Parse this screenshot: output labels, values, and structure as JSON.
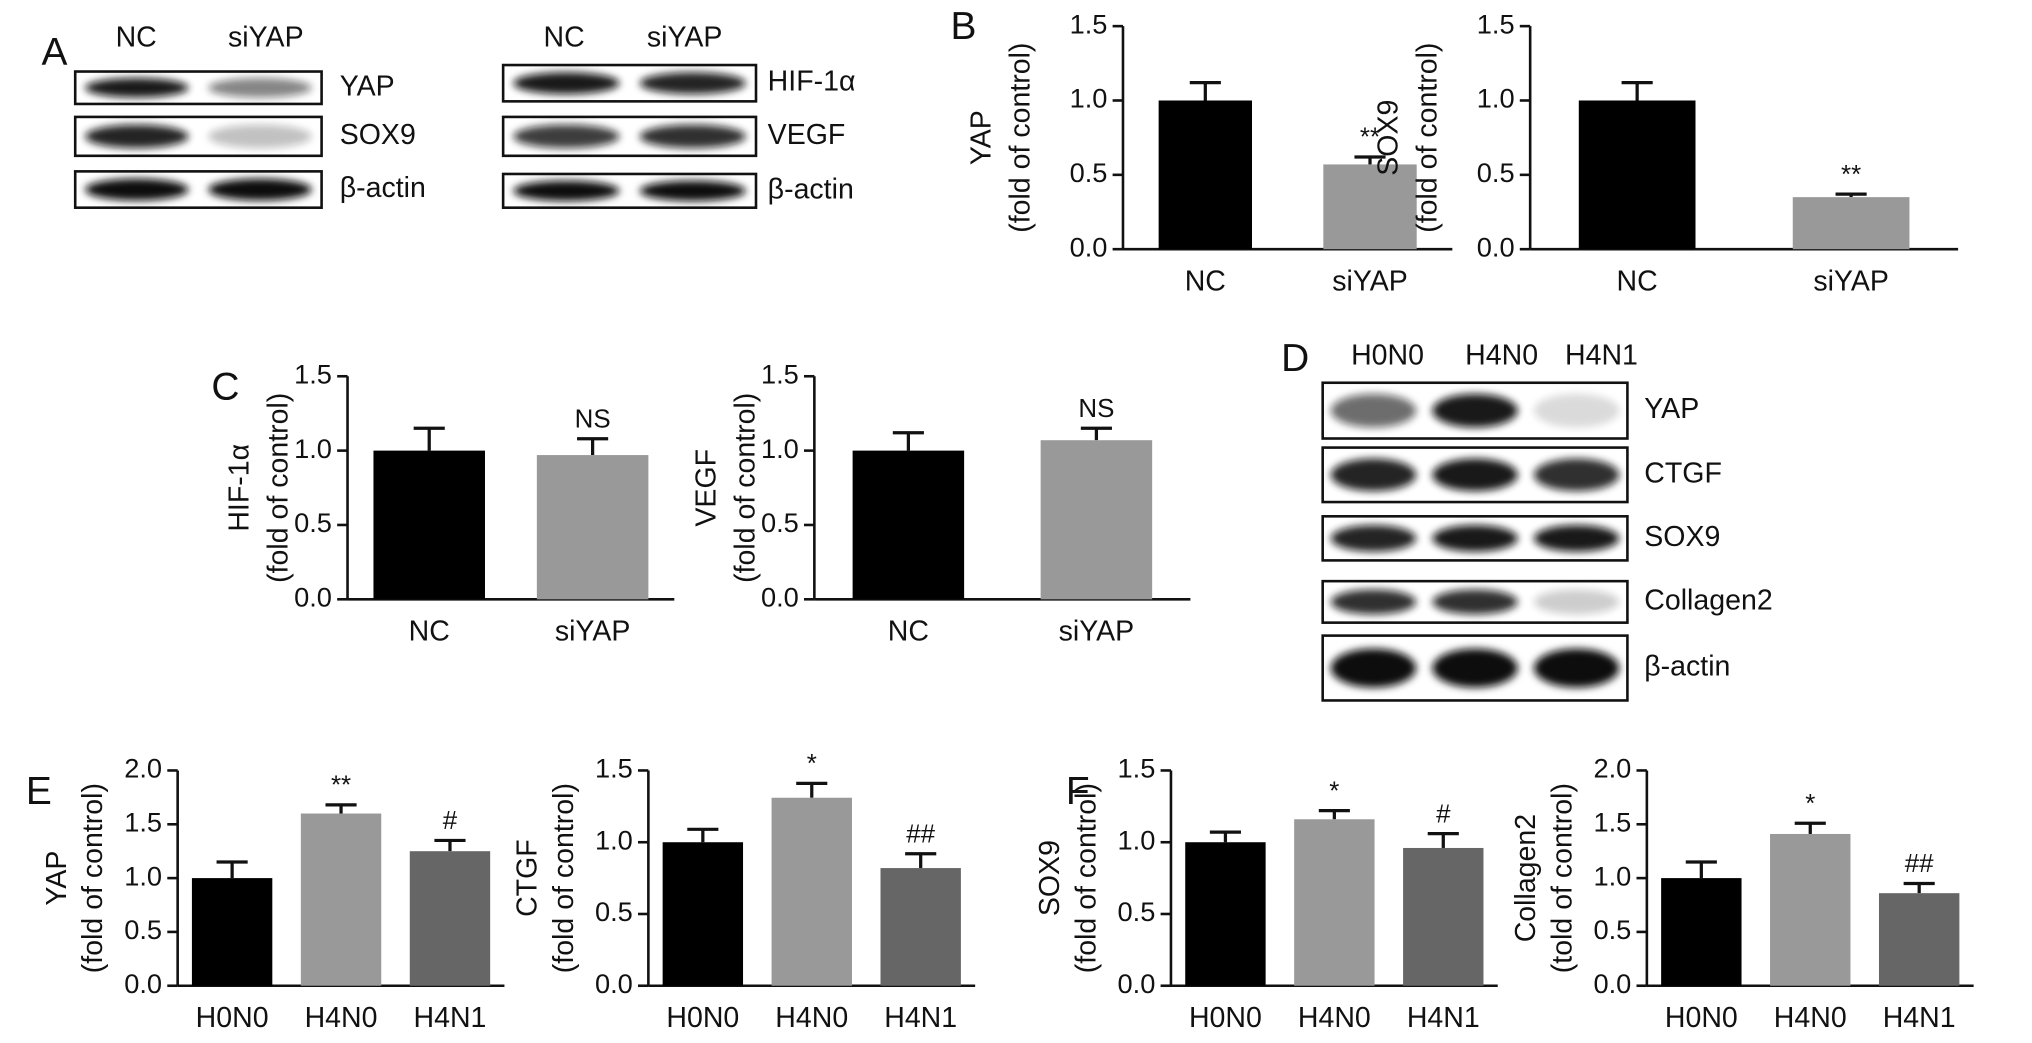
{
  "panels": [
    "A",
    "B",
    "C",
    "D",
    "E",
    "F"
  ],
  "blots": [
    {
      "lanes": [
        "NC",
        "siYAP"
      ],
      "rows": [
        "YAP",
        "SOX9",
        "β-actin"
      ]
    },
    {
      "lanes": [
        "NC",
        "siYAP"
      ],
      "rows": [
        "HIF-1α",
        "VEGF",
        "β-actin"
      ]
    },
    {
      "lanes": [
        "H0N0",
        "H4N0",
        "H4N1"
      ],
      "rows": [
        "YAP",
        "CTGF",
        "SOX9",
        "Collagen2",
        "β-actin"
      ]
    }
  ],
  "chart_data": [
    {
      "type": "bar",
      "ylabel": "YAP",
      "ylabel2": "(fold of control)",
      "categories": [
        "NC",
        "siYAP"
      ],
      "values": [
        1.0,
        0.57
      ],
      "errors": [
        0.12,
        0.05
      ],
      "colors": [
        "#000000",
        "#999999"
      ],
      "annotations": [
        null,
        "**"
      ],
      "ylim": [
        0,
        1.5
      ],
      "yticks": [
        {
          "value": 0,
          "label": "0.0"
        },
        0.5,
        {
          "value": 1,
          "label": "1.0"
        },
        1.5
      ]
    },
    {
      "type": "bar",
      "ylabel": "SOX9",
      "ylabel2": "(fold of control)",
      "categories": [
        "NC",
        "siYAP"
      ],
      "values": [
        1.0,
        0.35
      ],
      "errors": [
        0.12,
        0.02
      ],
      "colors": [
        "#000000",
        "#999999"
      ],
      "annotations": [
        null,
        "**"
      ],
      "ylim": [
        0,
        1.5
      ],
      "yticks": [
        {
          "value": 0,
          "label": "0.0"
        },
        0.5,
        {
          "value": 1,
          "label": "1.0"
        },
        1.5
      ]
    },
    {
      "type": "bar",
      "ylabel": "HIF-1α",
      "ylabel2": "(fold of control)",
      "categories": [
        "NC",
        "siYAP"
      ],
      "values": [
        1.0,
        0.97
      ],
      "errors": [
        0.15,
        0.11
      ],
      "colors": [
        "#000000",
        "#999999"
      ],
      "annotations": [
        null,
        "NS"
      ],
      "ylim": [
        0,
        1.5
      ],
      "yticks": [
        {
          "value": 0,
          "label": "0.0"
        },
        0.5,
        {
          "value": 1,
          "label": "1.0"
        },
        1.5
      ]
    },
    {
      "type": "bar",
      "ylabel": "VEGF",
      "ylabel2": "(fold of control)",
      "categories": [
        "NC",
        "siYAP"
      ],
      "values": [
        1.0,
        1.07
      ],
      "errors": [
        0.12,
        0.08
      ],
      "colors": [
        "#000000",
        "#999999"
      ],
      "annotations": [
        null,
        "NS"
      ],
      "ylim": [
        0,
        1.5
      ],
      "yticks": [
        {
          "value": 0,
          "label": "0.0"
        },
        0.5,
        {
          "value": 1,
          "label": "1.0"
        },
        1.5
      ]
    },
    {
      "type": "bar",
      "ylabel": "YAP",
      "ylabel2": "(fold of control)",
      "categories": [
        "H0N0",
        "H4N0",
        "H4N1"
      ],
      "values": [
        1.0,
        1.6,
        1.25
      ],
      "errors": [
        0.15,
        0.08,
        0.1
      ],
      "colors": [
        "#000000",
        "#999999",
        "#666666"
      ],
      "annotations": [
        null,
        "**",
        "#"
      ],
      "ylim": [
        0,
        2
      ],
      "yticks": [
        {
          "value": 0,
          "label": "0.0"
        },
        0.5,
        {
          "value": 1,
          "label": "1.0"
        },
        1.5,
        {
          "value": 2,
          "label": "2.0"
        }
      ]
    },
    {
      "type": "bar",
      "ylabel": "CTGF",
      "ylabel2": "(fold of control)",
      "categories": [
        "H0N0",
        "H4N0",
        "H4N1"
      ],
      "values": [
        1.0,
        1.31,
        0.82
      ],
      "errors": [
        0.09,
        0.1,
        0.1
      ],
      "colors": [
        "#000000",
        "#999999",
        "#666666"
      ],
      "annotations": [
        null,
        "*",
        "##"
      ],
      "ylim": [
        0,
        1.5
      ],
      "yticks": [
        {
          "value": 0,
          "label": "0.0"
        },
        0.5,
        {
          "value": 1,
          "label": "1.0"
        },
        1.5
      ]
    },
    {
      "type": "bar",
      "ylabel": "SOX9",
      "ylabel2": "(fold of control)",
      "categories": [
        "H0N0",
        "H4N0",
        "H4N1"
      ],
      "values": [
        1.0,
        1.16,
        0.96
      ],
      "errors": [
        0.07,
        0.06,
        0.1
      ],
      "colors": [
        "#000000",
        "#999999",
        "#666666"
      ],
      "annotations": [
        null,
        "*",
        "#"
      ],
      "ylim": [
        0,
        1.5
      ],
      "yticks": [
        {
          "value": 0,
          "label": "0.0"
        },
        0.5,
        {
          "value": 1,
          "label": "1.0"
        },
        1.5
      ]
    },
    {
      "type": "bar",
      "ylabel": "Collagen2",
      "ylabel2": "(told of control)",
      "categories": [
        "H0N0",
        "H4N0",
        "H4N1"
      ],
      "values": [
        1.0,
        1.41,
        0.86
      ],
      "errors": [
        0.15,
        0.1,
        0.09
      ],
      "colors": [
        "#000000",
        "#999999",
        "#666666"
      ],
      "annotations": [
        null,
        "*",
        "##"
      ],
      "ylim": [
        0,
        2
      ],
      "yticks": [
        {
          "value": 0,
          "label": "0.0"
        },
        0.5,
        {
          "value": 1,
          "label": "1.0"
        },
        1.5,
        {
          "value": 2,
          "label": "2.0"
        }
      ]
    }
  ]
}
